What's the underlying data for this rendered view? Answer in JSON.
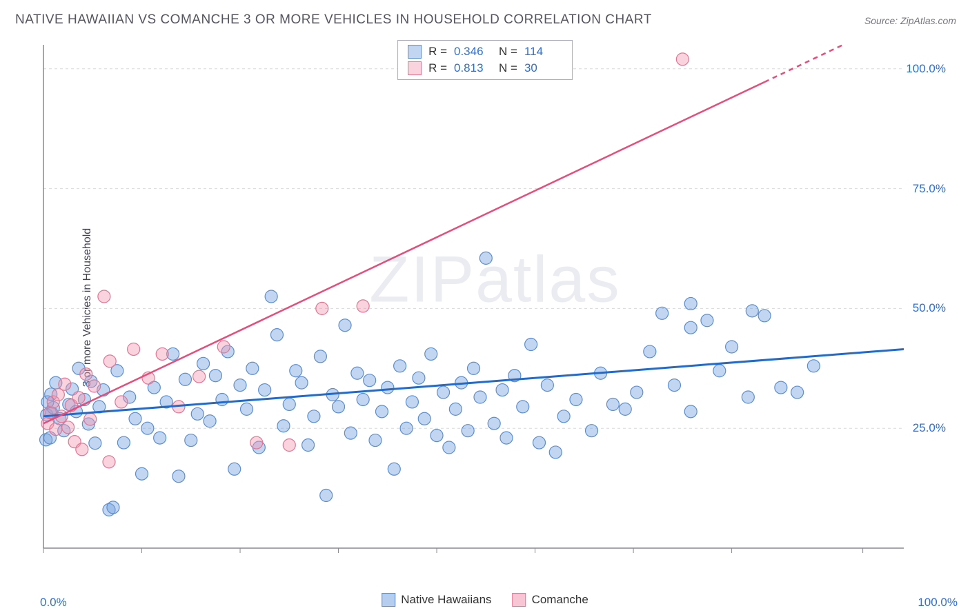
{
  "title": "NATIVE HAWAIIAN VS COMANCHE 3 OR MORE VEHICLES IN HOUSEHOLD CORRELATION CHART",
  "source": "Source: ZipAtlas.com",
  "yaxis_label": "3 or more Vehicles in Household",
  "watermark": "ZIPatlas",
  "chart": {
    "type": "scatter",
    "xlim": [
      0,
      105
    ],
    "ylim": [
      0,
      105
    ],
    "grid_color": "#d8d8dd",
    "axis_color": "#888890",
    "background_color": "#ffffff",
    "ytick_positions": [
      25,
      50,
      75,
      100
    ],
    "ytick_labels": [
      "25.0%",
      "50.0%",
      "75.0%",
      "100.0%"
    ],
    "xtick_positions": [
      0,
      12,
      24,
      36,
      48,
      60,
      72,
      84,
      100
    ],
    "xtick_labels_shown": {
      "0": "0.0%",
      "100": "100.0%"
    },
    "series": [
      {
        "name": "Native Hawaiians",
        "type": "scatter",
        "marker_color_fill": "rgba(120,165,225,0.45)",
        "marker_color_stroke": "#5a8ed0",
        "marker_radius": 9,
        "R": "0.346",
        "N": "114",
        "trend": {
          "color": "#1f6bd0",
          "width": 3,
          "y_at_x0": 27.5,
          "y_at_x105": 41.5,
          "dash_after_x": null
        },
        "points": [
          [
            0.3,
            22.6
          ],
          [
            0.8,
            23.0
          ],
          [
            0.4,
            27.8
          ],
          [
            1.0,
            28.2
          ],
          [
            1.2,
            29.3
          ],
          [
            0.5,
            30.5
          ],
          [
            0.9,
            32.1
          ],
          [
            1.5,
            34.5
          ],
          [
            2.0,
            27.0
          ],
          [
            2.5,
            24.5
          ],
          [
            3.1,
            30.0
          ],
          [
            3.5,
            33.2
          ],
          [
            4.0,
            28.5
          ],
          [
            4.3,
            37.5
          ],
          [
            5.0,
            31.0
          ],
          [
            5.5,
            25.9
          ],
          [
            5.8,
            34.8
          ],
          [
            6.3,
            21.9
          ],
          [
            6.8,
            29.5
          ],
          [
            7.3,
            33.0
          ],
          [
            8.0,
            8.0
          ],
          [
            8.5,
            8.5
          ],
          [
            9.0,
            37.0
          ],
          [
            9.8,
            22.0
          ],
          [
            10.5,
            31.5
          ],
          [
            11.2,
            27.0
          ],
          [
            12.0,
            15.5
          ],
          [
            12.7,
            25.0
          ],
          [
            13.5,
            33.5
          ],
          [
            14.2,
            23.0
          ],
          [
            15.0,
            30.5
          ],
          [
            15.8,
            40.5
          ],
          [
            16.5,
            15.0
          ],
          [
            17.3,
            35.2
          ],
          [
            18.0,
            22.5
          ],
          [
            18.8,
            28.0
          ],
          [
            19.5,
            38.5
          ],
          [
            20.3,
            26.5
          ],
          [
            21.0,
            36.0
          ],
          [
            21.8,
            31.0
          ],
          [
            22.5,
            41.0
          ],
          [
            23.3,
            16.5
          ],
          [
            24.0,
            34.0
          ],
          [
            24.8,
            29.0
          ],
          [
            25.5,
            37.5
          ],
          [
            26.3,
            21.0
          ],
          [
            27.0,
            33.0
          ],
          [
            27.8,
            52.5
          ],
          [
            28.5,
            44.5
          ],
          [
            29.3,
            25.5
          ],
          [
            30.0,
            30.0
          ],
          [
            30.8,
            37.0
          ],
          [
            31.5,
            34.5
          ],
          [
            32.3,
            21.5
          ],
          [
            33.0,
            27.5
          ],
          [
            33.8,
            40.0
          ],
          [
            34.5,
            11.0
          ],
          [
            35.3,
            32.0
          ],
          [
            36.0,
            29.5
          ],
          [
            36.8,
            46.5
          ],
          [
            37.5,
            24.0
          ],
          [
            38.3,
            36.5
          ],
          [
            39.0,
            31.0
          ],
          [
            39.8,
            35.0
          ],
          [
            40.5,
            22.5
          ],
          [
            41.3,
            28.5
          ],
          [
            42.0,
            33.5
          ],
          [
            42.8,
            16.5
          ],
          [
            43.5,
            38.0
          ],
          [
            44.3,
            25.0
          ],
          [
            45.0,
            30.5
          ],
          [
            45.8,
            35.5
          ],
          [
            46.5,
            27.0
          ],
          [
            47.3,
            40.5
          ],
          [
            48.0,
            23.5
          ],
          [
            48.8,
            32.5
          ],
          [
            49.5,
            21.0
          ],
          [
            50.3,
            29.0
          ],
          [
            51.0,
            34.5
          ],
          [
            51.8,
            24.5
          ],
          [
            52.5,
            37.5
          ],
          [
            53.3,
            31.5
          ],
          [
            54.0,
            60.5
          ],
          [
            55.0,
            26.0
          ],
          [
            56.0,
            33.0
          ],
          [
            56.5,
            23.0
          ],
          [
            57.5,
            36.0
          ],
          [
            58.5,
            29.5
          ],
          [
            59.5,
            42.5
          ],
          [
            60.5,
            22.0
          ],
          [
            61.5,
            34.0
          ],
          [
            62.5,
            20.0
          ],
          [
            63.5,
            27.5
          ],
          [
            65.0,
            31.0
          ],
          [
            66.9,
            24.5
          ],
          [
            68.0,
            36.5
          ],
          [
            69.5,
            30.0
          ],
          [
            71.0,
            29.0
          ],
          [
            72.4,
            32.5
          ],
          [
            74.0,
            41.0
          ],
          [
            75.5,
            49.0
          ],
          [
            77.0,
            34.0
          ],
          [
            79.0,
            46.0
          ],
          [
            79.0,
            28.5
          ],
          [
            81.0,
            47.5
          ],
          [
            82.5,
            37.0
          ],
          [
            84.0,
            42.0
          ],
          [
            86.0,
            31.5
          ],
          [
            88.0,
            48.5
          ],
          [
            90.0,
            33.5
          ],
          [
            86.5,
            49.5
          ],
          [
            92.0,
            32.5
          ],
          [
            94.0,
            38.0
          ],
          [
            79.0,
            51.0
          ]
        ]
      },
      {
        "name": "Comanche",
        "type": "scatter",
        "marker_color_fill": "rgba(240,150,175,0.42)",
        "marker_color_stroke": "#e07595",
        "marker_radius": 9,
        "R": "0.813",
        "N": "30",
        "trend": {
          "color": "#e94b7a",
          "width": 2.5,
          "y_at_x0": 26.0,
          "y_at_x105": 111.0,
          "dash_after_x": 88
        },
        "points": [
          [
            0.5,
            26.0
          ],
          [
            0.8,
            28.3
          ],
          [
            1.2,
            30.5
          ],
          [
            1.5,
            24.8
          ],
          [
            1.8,
            32.0
          ],
          [
            2.2,
            27.5
          ],
          [
            2.6,
            34.2
          ],
          [
            3.0,
            25.2
          ],
          [
            3.4,
            29.8
          ],
          [
            3.8,
            22.2
          ],
          [
            4.3,
            31.4
          ],
          [
            4.7,
            20.6
          ],
          [
            5.2,
            36.3
          ],
          [
            5.7,
            26.9
          ],
          [
            6.2,
            33.8
          ],
          [
            8.0,
            18.0
          ],
          [
            7.4,
            52.5
          ],
          [
            8.1,
            39.0
          ],
          [
            9.5,
            30.5
          ],
          [
            11.0,
            41.5
          ],
          [
            12.8,
            35.5
          ],
          [
            14.5,
            40.5
          ],
          [
            16.5,
            29.5
          ],
          [
            19.0,
            35.8
          ],
          [
            22.0,
            42.0
          ],
          [
            26.0,
            22.0
          ],
          [
            30.0,
            21.5
          ],
          [
            34.0,
            50.0
          ],
          [
            39.0,
            50.5
          ],
          [
            78.0,
            102.0
          ]
        ]
      }
    ]
  },
  "legend_bottom": [
    {
      "label": "Native Hawaiians",
      "fill": "rgba(120,165,225,0.55)",
      "stroke": "#5a8ed0"
    },
    {
      "label": "Comanche",
      "fill": "rgba(240,150,175,0.55)",
      "stroke": "#e07595"
    }
  ]
}
